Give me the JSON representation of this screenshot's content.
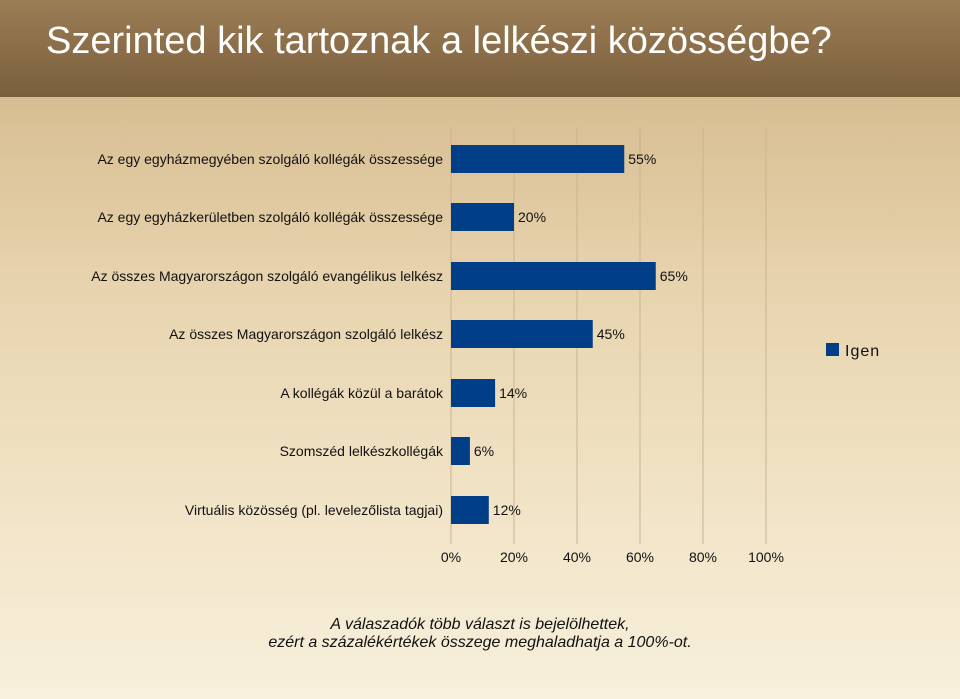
{
  "slide": {
    "title": "Szerinted kik tartoznak a lelkészi közösségbe?",
    "footnote_line1": "A válaszadók több választ is bejelölhettek,",
    "footnote_line2": "ezért a százalékértékek összege meghaladhatja a 100%-ot."
  },
  "colors": {
    "bar": "#003f87",
    "grid": "#c9b48f",
    "text": "#111111"
  },
  "chart_data": {
    "type": "bar",
    "orientation": "horizontal",
    "categories": [
      "Az egy egyházmegyében szolgáló kollégák összessége",
      "Az egy egyházkerületben szolgáló kollégák összessége",
      "Az összes Magyarországon szolgáló evangélikus lelkész",
      "Az összes Magyarországon szolgáló lelkész",
      "A kollégák közül a barátok",
      "Szomszéd lelkészkollégák",
      "Virtuális közösség (pl. levelezőlista tagjai)"
    ],
    "series": [
      {
        "name": "Igen",
        "values": [
          55,
          20,
          65,
          45,
          14,
          6,
          12
        ],
        "labels": [
          "55%",
          "20%",
          "65%",
          "45%",
          "14%",
          "6%",
          "12%"
        ]
      }
    ],
    "xlim": [
      0,
      100
    ],
    "ticks": [
      0,
      20,
      40,
      60,
      80,
      100
    ],
    "tick_labels": [
      "0%",
      "20%",
      "40%",
      "60%",
      "80%",
      "100%"
    ],
    "grid": true,
    "legend_position": "right"
  }
}
